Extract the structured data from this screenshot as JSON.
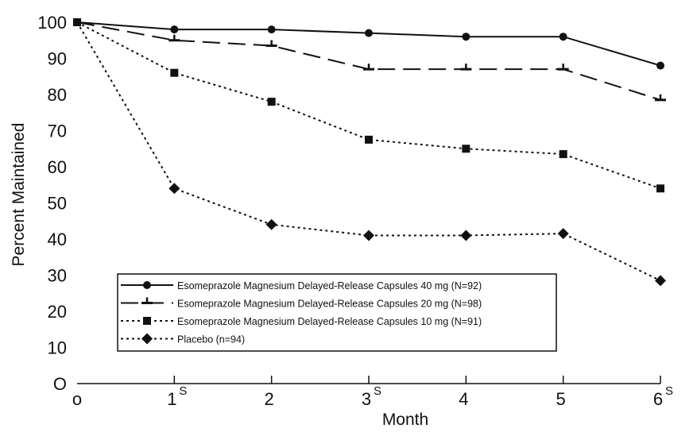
{
  "chart_data": {
    "type": "line",
    "title": "",
    "xlabel": "Month",
    "ylabel": "Percent Maintained",
    "x": [
      0,
      1,
      2,
      3,
      4,
      5,
      6
    ],
    "x_tick_labels": [
      "o",
      "1",
      "2",
      "3",
      "4",
      "5",
      "6"
    ],
    "x_tick_superscripts": [
      "",
      "S",
      "",
      "S",
      "",
      "",
      "S"
    ],
    "y_ticks": [
      0,
      10,
      20,
      30,
      40,
      50,
      60,
      70,
      80,
      90,
      100
    ],
    "y_tick_labels": [
      "O",
      "10",
      "20",
      "30",
      "40",
      "50",
      "60",
      "70",
      "80",
      "90",
      "100"
    ],
    "xlim": [
      0,
      6
    ],
    "ylim": [
      0,
      100
    ],
    "grid": false,
    "legend_position": "bottom-left",
    "series": [
      {
        "name": "Esomeprazole Magnesium Delayed-Release Capsules 40 mg (N=92)",
        "values": [
          100,
          98,
          98,
          97,
          96,
          96,
          88
        ],
        "line_style": "solid",
        "marker": "circle",
        "color": "#111111"
      },
      {
        "name": "Esomeprazole Magnesium Delayed-Release Capsules 20 mg (N=98)",
        "values": [
          100,
          95,
          93.5,
          87,
          87,
          87,
          78.5
        ],
        "line_style": "long-dash",
        "marker": "tee",
        "color": "#111111"
      },
      {
        "name": "Esomeprazole Magnesium Delayed-Release Capsules 10 mg (N=91)",
        "values": [
          100,
          86,
          78,
          67.5,
          65,
          63.5,
          54
        ],
        "line_style": "dotted",
        "marker": "square",
        "color": "#111111"
      },
      {
        "name": "Placebo (n=94)",
        "values": [
          100,
          54,
          44,
          41,
          41,
          41.5,
          28.5
        ],
        "line_style": "dotted",
        "marker": "diamond",
        "color": "#111111"
      }
    ]
  }
}
